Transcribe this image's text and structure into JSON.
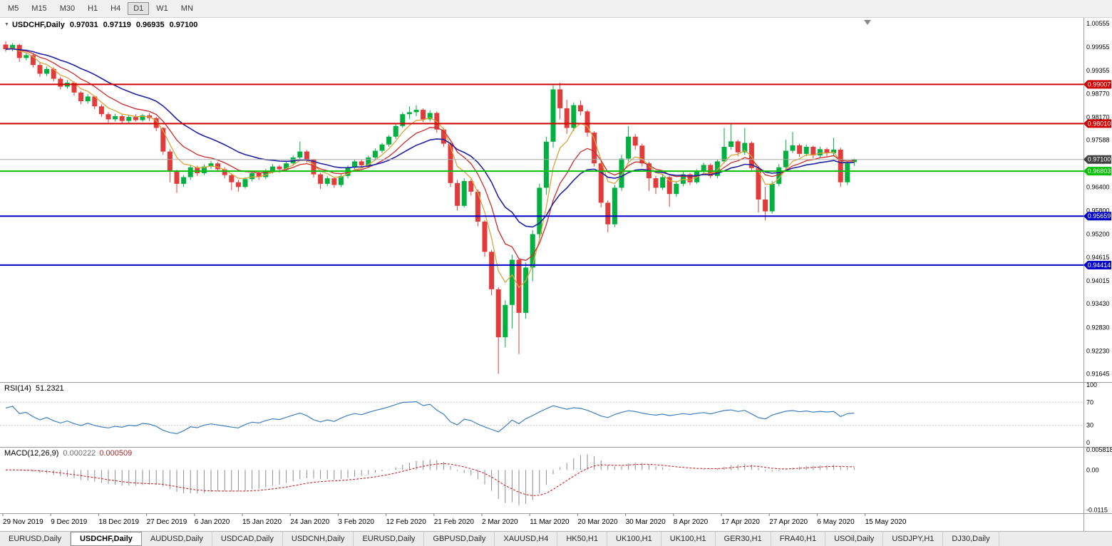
{
  "toolbar": {
    "timeframes": [
      "M5",
      "M15",
      "M30",
      "H1",
      "H4",
      "D1",
      "W1",
      "MN"
    ],
    "active": "D1"
  },
  "icons": {
    "collapse": "▼"
  },
  "chart": {
    "title": "USDCHF,Daily",
    "ohlc": {
      "open": "0.97031",
      "high": "0.97119",
      "low": "0.96935",
      "close": "0.97100"
    },
    "current_price": {
      "value": 0.971,
      "label": "0.97100",
      "box_color": "#404040",
      "line_color": "#a8a8a8"
    },
    "hlines": [
      {
        "value": 0.99007,
        "label": "0.99007",
        "color": "#d10000"
      },
      {
        "value": 0.9801,
        "label": "0.98010",
        "color": "#d10000"
      },
      {
        "value": 0.96803,
        "label": "0.96803",
        "color": "#00c000"
      },
      {
        "value": 0.95659,
        "label": "0.95659",
        "color": "#0000c8"
      },
      {
        "value": 0.94414,
        "label": "0.94414",
        "color": "#0000c8"
      }
    ],
    "y_axis_labels": [
      "1.00555",
      "0.99955",
      "0.99355",
      "0.98770",
      "0.98170",
      "0.97588",
      "0.96400",
      "0.95800",
      "0.95200",
      "0.94615",
      "0.94015",
      "0.93430",
      "0.92830",
      "0.92230",
      "0.91645"
    ],
    "colors": {
      "up": "#00b140",
      "down": "#e23b3b",
      "ma_fast": "#d9a43b",
      "ma_mid": "#cc2a2a",
      "ma_slow": "#2020a0"
    }
  },
  "rsi": {
    "label": "RSI(14)",
    "value": "51.2321",
    "axis": [
      "100",
      "70",
      "30",
      "0"
    ],
    "axis_values": [
      100,
      70,
      30,
      0
    ],
    "levels": [
      70,
      30
    ],
    "line_color": "#3f7fbf"
  },
  "macd": {
    "label": "MACD(12,26,9)",
    "main_value": "0.000222",
    "signal_value": "0.000509",
    "axis": [
      "0.005818",
      "0.00",
      "-0.0115"
    ],
    "axis_values": [
      0.005818,
      0,
      -0.0115
    ],
    "range": {
      "max": 0.006,
      "min": -0.0118
    },
    "hist_color": "#8c8c8c",
    "signal_color": "#cc2a2a",
    "params": {
      "fast": 12,
      "slow": 26,
      "signal": 9
    }
  },
  "tabs": {
    "active_index": 1,
    "items": [
      "EURUSD,Daily",
      "USDCHF,Daily",
      "AUDUSD,Daily",
      "USDCAD,Daily",
      "USDCNH,Daily",
      "EURUSD,Daily",
      "GBPUSD,Daily",
      "XAUUSD,H4",
      "HK50,H1",
      "UK100,H1",
      "UK100,H1",
      "GER30,H1",
      "FRA40,H1",
      "USOil,Daily",
      "USDJPY,H1",
      "DJ30,Daily"
    ]
  },
  "chart_data": {
    "type": "candlestick",
    "symbol": "USDCHF",
    "period": "Daily",
    "ylim": [
      0.9144,
      1.007
    ],
    "x_labels": [
      "29 Nov 2019",
      "9 Dec 2019",
      "18 Dec 2019",
      "27 Dec 2019",
      "6 Jan 2020",
      "15 Jan 2020",
      "24 Jan 2020",
      "3 Feb 2020",
      "12 Feb 2020",
      "21 Feb 2020",
      "2 Mar 2020",
      "11 Mar 2020",
      "20 Mar 2020",
      "30 Mar 2020",
      "8 Apr 2020",
      "17 Apr 2020",
      "27 Apr 2020",
      "6 May 2020",
      "15 May 2020"
    ],
    "candles": [
      [
        1.0002,
        1.001,
        0.9984,
        0.999
      ],
      [
        0.999,
        1.0006,
        0.9985,
        1.0001
      ],
      [
        1.0001,
        1.0004,
        0.9958,
        0.9968
      ],
      [
        0.9968,
        0.9982,
        0.9962,
        0.9975
      ],
      [
        0.9975,
        0.9979,
        0.9944,
        0.995
      ],
      [
        0.995,
        0.9956,
        0.992,
        0.9928
      ],
      [
        0.9928,
        0.9946,
        0.9922,
        0.994
      ],
      [
        0.994,
        0.9944,
        0.9908,
        0.9915
      ],
      [
        0.9915,
        0.992,
        0.9888,
        0.9895
      ],
      [
        0.9895,
        0.9912,
        0.989,
        0.9905
      ],
      [
        0.9905,
        0.9908,
        0.9872,
        0.988
      ],
      [
        0.988,
        0.9884,
        0.985,
        0.9858
      ],
      [
        0.9858,
        0.9876,
        0.9852,
        0.987
      ],
      [
        0.987,
        0.9872,
        0.9838,
        0.9845
      ],
      [
        0.9845,
        0.985,
        0.9818,
        0.9825
      ],
      [
        0.9825,
        0.983,
        0.9804,
        0.9812
      ],
      [
        0.9812,
        0.9826,
        0.9806,
        0.982
      ],
      [
        0.982,
        0.9824,
        0.98,
        0.9808
      ],
      [
        0.9808,
        0.9822,
        0.9802,
        0.9818
      ],
      [
        0.9818,
        0.9825,
        0.9806,
        0.981
      ],
      [
        0.981,
        0.9826,
        0.9806,
        0.9822
      ],
      [
        0.9822,
        0.9828,
        0.9808,
        0.9815
      ],
      [
        0.9815,
        0.9818,
        0.9782,
        0.979
      ],
      [
        0.979,
        0.9792,
        0.9722,
        0.973
      ],
      [
        0.973,
        0.9736,
        0.9652,
        0.968
      ],
      [
        0.968,
        0.9684,
        0.9625,
        0.9648
      ],
      [
        0.9648,
        0.967,
        0.964,
        0.9665
      ],
      [
        0.9665,
        0.9696,
        0.9658,
        0.969
      ],
      [
        0.969,
        0.9694,
        0.9668,
        0.9675
      ],
      [
        0.9675,
        0.9697,
        0.967,
        0.9692
      ],
      [
        0.9692,
        0.9706,
        0.9686,
        0.97
      ],
      [
        0.97,
        0.9704,
        0.9678,
        0.9685
      ],
      [
        0.9685,
        0.969,
        0.9662,
        0.967
      ],
      [
        0.967,
        0.9674,
        0.9632,
        0.9652
      ],
      [
        0.9652,
        0.9658,
        0.9628,
        0.964
      ],
      [
        0.964,
        0.9665,
        0.9636,
        0.966
      ],
      [
        0.966,
        0.968,
        0.9654,
        0.9675
      ],
      [
        0.9675,
        0.9679,
        0.9658,
        0.9665
      ],
      [
        0.9665,
        0.9686,
        0.966,
        0.968
      ],
      [
        0.968,
        0.9698,
        0.9674,
        0.9692
      ],
      [
        0.9692,
        0.9696,
        0.9676,
        0.9685
      ],
      [
        0.9685,
        0.9706,
        0.968,
        0.97
      ],
      [
        0.97,
        0.972,
        0.9694,
        0.9715
      ],
      [
        0.9715,
        0.9755,
        0.971,
        0.973
      ],
      [
        0.973,
        0.9734,
        0.9702,
        0.971
      ],
      [
        0.971,
        0.9712,
        0.9664,
        0.9672
      ],
      [
        0.9672,
        0.9676,
        0.9635,
        0.9648
      ],
      [
        0.9648,
        0.9668,
        0.9642,
        0.9662
      ],
      [
        0.9662,
        0.9665,
        0.9638,
        0.9645
      ],
      [
        0.9645,
        0.9672,
        0.964,
        0.9668
      ],
      [
        0.9668,
        0.9695,
        0.9662,
        0.969
      ],
      [
        0.969,
        0.971,
        0.9684,
        0.9705
      ],
      [
        0.9705,
        0.9709,
        0.9688,
        0.9695
      ],
      [
        0.9695,
        0.972,
        0.969,
        0.9715
      ],
      [
        0.9715,
        0.9738,
        0.971,
        0.9732
      ],
      [
        0.9732,
        0.9752,
        0.9726,
        0.9748
      ],
      [
        0.9748,
        0.9772,
        0.9742,
        0.9768
      ],
      [
        0.9768,
        0.98,
        0.9762,
        0.9795
      ],
      [
        0.9795,
        0.983,
        0.979,
        0.9825
      ],
      [
        0.9825,
        0.9845,
        0.9812,
        0.983
      ],
      [
        0.983,
        0.9848,
        0.982,
        0.9836
      ],
      [
        0.9836,
        0.984,
        0.9805,
        0.9812
      ],
      [
        0.9812,
        0.9835,
        0.9806,
        0.9828
      ],
      [
        0.9828,
        0.9832,
        0.9778,
        0.9786
      ],
      [
        0.9786,
        0.979,
        0.9742,
        0.975
      ],
      [
        0.975,
        0.9754,
        0.964,
        0.965
      ],
      [
        0.965,
        0.9658,
        0.958,
        0.9592
      ],
      [
        0.9592,
        0.9662,
        0.9588,
        0.9655
      ],
      [
        0.9655,
        0.966,
        0.9618,
        0.9628
      ],
      [
        0.9628,
        0.9634,
        0.954,
        0.9552
      ],
      [
        0.9552,
        0.9556,
        0.9462,
        0.9475
      ],
      [
        0.9475,
        0.948,
        0.9365,
        0.938
      ],
      [
        0.938,
        0.9385,
        0.9165,
        0.9258
      ],
      [
        0.9258,
        0.9352,
        0.9232,
        0.934
      ],
      [
        0.934,
        0.9468,
        0.928,
        0.9455
      ],
      [
        0.9455,
        0.946,
        0.9215,
        0.932
      ],
      [
        0.932,
        0.9448,
        0.9305,
        0.9435
      ],
      [
        0.9435,
        0.953,
        0.94,
        0.952
      ],
      [
        0.952,
        0.9648,
        0.9505,
        0.9638
      ],
      [
        0.9638,
        0.9768,
        0.962,
        0.9755
      ],
      [
        0.9755,
        0.9902,
        0.974,
        0.9888
      ],
      [
        0.9888,
        0.9905,
        0.9812,
        0.984
      ],
      [
        0.984,
        0.9862,
        0.9775,
        0.979
      ],
      [
        0.979,
        0.9855,
        0.9782,
        0.9848
      ],
      [
        0.9848,
        0.986,
        0.9822,
        0.9832
      ],
      [
        0.9832,
        0.9836,
        0.9768,
        0.9778
      ],
      [
        0.9778,
        0.9782,
        0.9692,
        0.97
      ],
      [
        0.97,
        0.9705,
        0.9588,
        0.96
      ],
      [
        0.96,
        0.9606,
        0.9525,
        0.9545
      ],
      [
        0.9545,
        0.9645,
        0.9538,
        0.9638
      ],
      [
        0.9638,
        0.9722,
        0.963,
        0.9712
      ],
      [
        0.9712,
        0.9795,
        0.9705,
        0.9768
      ],
      [
        0.9768,
        0.9775,
        0.9735,
        0.9745
      ],
      [
        0.9745,
        0.975,
        0.9692,
        0.97
      ],
      [
        0.97,
        0.9704,
        0.963,
        0.9662
      ],
      [
        0.9662,
        0.9668,
        0.9622,
        0.9638
      ],
      [
        0.9638,
        0.9672,
        0.9632,
        0.9665
      ],
      [
        0.9665,
        0.9668,
        0.959,
        0.9622
      ],
      [
        0.9622,
        0.9655,
        0.9615,
        0.9648
      ],
      [
        0.9648,
        0.9678,
        0.9642,
        0.9672
      ],
      [
        0.9672,
        0.9676,
        0.9645,
        0.9652
      ],
      [
        0.9652,
        0.9685,
        0.9648,
        0.968
      ],
      [
        0.968,
        0.9702,
        0.9674,
        0.9696
      ],
      [
        0.9696,
        0.97,
        0.9662,
        0.9668
      ],
      [
        0.9668,
        0.971,
        0.9662,
        0.9705
      ],
      [
        0.9705,
        0.979,
        0.97,
        0.9742
      ],
      [
        0.9742,
        0.98,
        0.9735,
        0.9756
      ],
      [
        0.9756,
        0.976,
        0.9718,
        0.9728
      ],
      [
        0.9728,
        0.979,
        0.9722,
        0.9752
      ],
      [
        0.9752,
        0.9756,
        0.9678,
        0.9688
      ],
      [
        0.9688,
        0.9692,
        0.9575,
        0.9608
      ],
      [
        0.9608,
        0.964,
        0.9555,
        0.9578
      ],
      [
        0.9578,
        0.9655,
        0.9572,
        0.9648
      ],
      [
        0.9648,
        0.9698,
        0.9642,
        0.969
      ],
      [
        0.969,
        0.976,
        0.9685,
        0.9732
      ],
      [
        0.9732,
        0.978,
        0.9726,
        0.9746
      ],
      [
        0.9746,
        0.975,
        0.9716,
        0.9724
      ],
      [
        0.9724,
        0.9748,
        0.9718,
        0.9742
      ],
      [
        0.9742,
        0.9745,
        0.9712,
        0.972
      ],
      [
        0.972,
        0.9742,
        0.9714,
        0.9736
      ],
      [
        0.9736,
        0.974,
        0.9718,
        0.9726
      ],
      [
        0.9726,
        0.9765,
        0.972,
        0.9735
      ],
      [
        0.9735,
        0.974,
        0.964,
        0.9652
      ],
      [
        0.9652,
        0.9706,
        0.9645,
        0.97
      ],
      [
        0.97031,
        0.97119,
        0.96935,
        0.971
      ]
    ]
  }
}
